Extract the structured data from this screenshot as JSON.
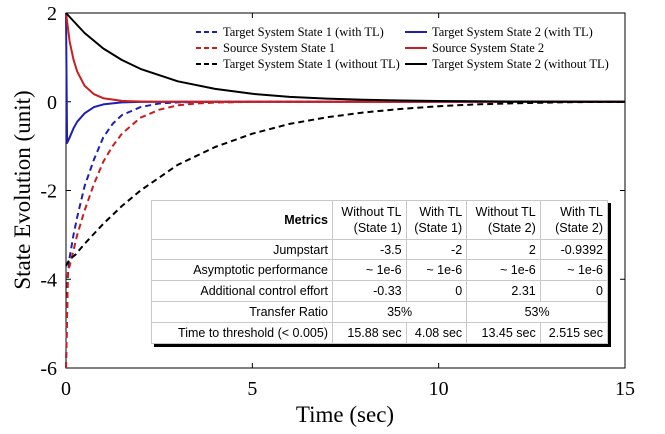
{
  "chart_data": {
    "type": "line",
    "title": "",
    "xlabel": "Time (sec)",
    "ylabel": "State Evolution (unit)",
    "xlim": [
      0,
      15
    ],
    "ylim": [
      -6,
      2
    ],
    "xticks": [
      0,
      5,
      10,
      15
    ],
    "yticks": [
      -6,
      -4,
      -2,
      0,
      2
    ],
    "grid": false,
    "legend_position": "top-right",
    "series": [
      {
        "name": "Target System State 1 (with TL)",
        "color": "#1f1fb4",
        "dash": "dashed",
        "x": [
          0,
          0.05,
          0.1,
          0.2,
          0.3,
          0.5,
          0.75,
          1.0,
          1.25,
          1.5,
          2.0,
          2.5,
          3.0,
          4.0,
          5.0,
          15.0
        ],
        "y": [
          -6.0,
          -3.9,
          -3.5,
          -3.0,
          -2.6,
          -1.9,
          -1.3,
          -0.8,
          -0.5,
          -0.3,
          -0.12,
          -0.04,
          -0.015,
          0,
          0,
          0
        ]
      },
      {
        "name": "Target System State 2 (with TL)",
        "color": "#1f1fb4",
        "dash": "solid",
        "x": [
          0,
          0.03,
          0.1,
          0.2,
          0.3,
          0.5,
          0.75,
          1.0,
          1.5,
          2.0,
          3.0,
          4.0,
          15.0
        ],
        "y": [
          2.0,
          -0.93,
          -0.8,
          -0.6,
          -0.45,
          -0.26,
          -0.12,
          -0.06,
          -0.015,
          -0.004,
          0,
          0,
          0
        ]
      },
      {
        "name": "Source System State 1",
        "color": "#c81e1e",
        "dash": "dashed",
        "x": [
          0,
          0.05,
          0.1,
          0.2,
          0.3,
          0.5,
          0.75,
          1.0,
          1.25,
          1.5,
          2.0,
          2.5,
          3.0,
          3.5,
          4.0,
          5.0,
          15.0
        ],
        "y": [
          -6.0,
          -3.8,
          -3.7,
          -3.35,
          -3.0,
          -2.45,
          -1.85,
          -1.35,
          -1.0,
          -0.72,
          -0.36,
          -0.18,
          -0.08,
          -0.04,
          -0.02,
          0,
          0
        ]
      },
      {
        "name": "Source System State 2",
        "color": "#c81e1e",
        "dash": "solid",
        "x": [
          0,
          0.1,
          0.2,
          0.3,
          0.5,
          0.75,
          1.0,
          1.5,
          2.0,
          2.5,
          3.0,
          4.0,
          15.0
        ],
        "y": [
          2.0,
          1.35,
          0.95,
          0.68,
          0.36,
          0.17,
          0.08,
          0.02,
          0.005,
          0.001,
          0,
          0,
          0
        ]
      },
      {
        "name": "Target System State 1 (without TL)",
        "color": "#000000",
        "dash": "dashed",
        "x": [
          0,
          0.1,
          0.25,
          0.5,
          1.0,
          1.5,
          2.0,
          3.0,
          4.0,
          5.0,
          6.0,
          7.0,
          8.0,
          9.0,
          10.0,
          11.0,
          12.0,
          13.45,
          15.0
        ],
        "y": [
          -3.7,
          -3.55,
          -3.45,
          -3.2,
          -2.75,
          -2.35,
          -2.0,
          -1.42,
          -1.02,
          -0.72,
          -0.5,
          -0.35,
          -0.24,
          -0.16,
          -0.1,
          -0.06,
          -0.035,
          -0.01,
          0
        ]
      },
      {
        "name": "Target System State 2 (without TL)",
        "color": "#000000",
        "dash": "solid",
        "x": [
          0,
          0.5,
          1.0,
          1.5,
          2.0,
          3.0,
          4.0,
          5.0,
          6.0,
          7.0,
          8.0,
          9.0,
          10.0,
          11.0,
          12.0,
          13.45,
          15.0
        ],
        "y": [
          2.0,
          1.55,
          1.2,
          0.94,
          0.74,
          0.46,
          0.29,
          0.18,
          0.11,
          0.07,
          0.045,
          0.028,
          0.017,
          0.01,
          0.006,
          0.003,
          0.001
        ]
      }
    ]
  },
  "metrics_table": {
    "header_label": "Metrics",
    "col1": [
      "Without TL",
      "(State 1)"
    ],
    "col2": [
      "With TL",
      "(State 1)"
    ],
    "col3": [
      "Without TL",
      "(State 2)"
    ],
    "col4": [
      "With TL",
      "(State 2)"
    ],
    "rows": [
      {
        "label": "Jumpstart",
        "v1": "-3.5",
        "v2": "-2",
        "v3": "2",
        "v4": "-0.9392"
      },
      {
        "label": "Asymptotic performance",
        "v1": "~ 1e-6",
        "v2": "~ 1e-6",
        "v3": "~ 1e-6",
        "v4": "~ 1e-6"
      },
      {
        "label": "Additional control effort",
        "v1": "-0.33",
        "v2": "0",
        "v3": "2.31",
        "v4": "0"
      },
      {
        "label": "Transfer Ratio",
        "s1": "35%",
        "s2": "53%"
      },
      {
        "label": "Time to threshold (< 0.005)",
        "v1": "15.88 sec",
        "v2": "4.08 sec",
        "v3": "13.45 sec",
        "v4": "2.515 sec"
      }
    ]
  }
}
